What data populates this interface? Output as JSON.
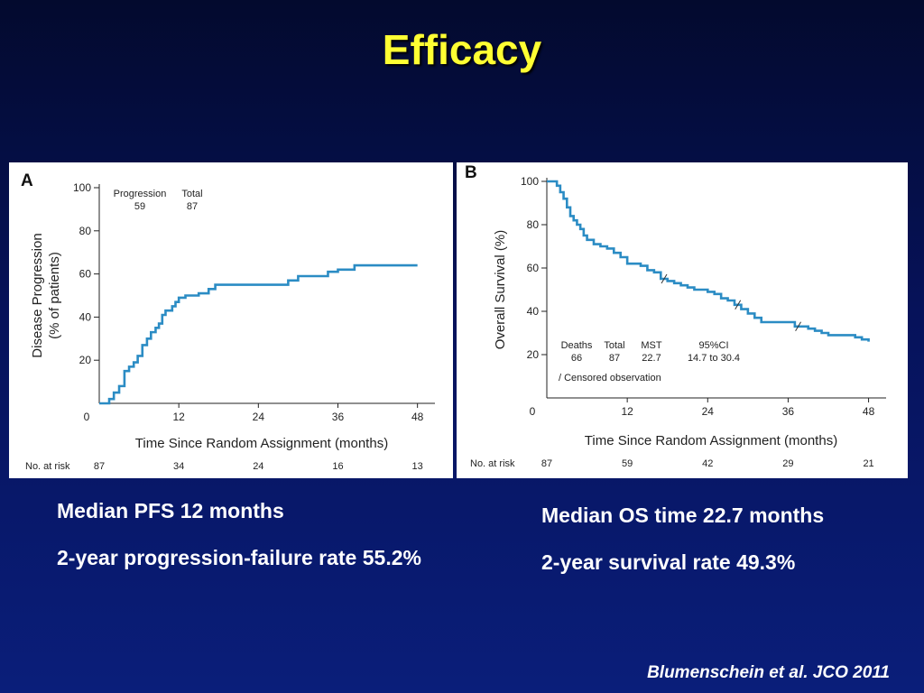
{
  "slide": {
    "title": "Efficacy",
    "citation": "Blumenschein et al. JCO 2011"
  },
  "stats": {
    "left": [
      "Median PFS 12 months",
      "2-year progression-failure rate 55.2%"
    ],
    "right": [
      "Median OS time 22.7 months",
      "2-year survival rate 49.3%"
    ]
  },
  "colors": {
    "curve": "#2b8cc4",
    "axis": "#222222",
    "title": "#ffff33"
  },
  "chart_data": [
    {
      "panel_label": "A",
      "type": "line",
      "step": true,
      "xlabel": "Time Since Random Assignment (months)",
      "ylabel": [
        "Disease Progression",
        "(% of patients)"
      ],
      "xticks": [
        0,
        12,
        24,
        36,
        48
      ],
      "yticks": [
        20,
        40,
        60,
        80,
        100
      ],
      "xlim": [
        0,
        49
      ],
      "ylim": [
        0,
        100
      ],
      "legend": {
        "headers": [
          "Progression",
          "Total"
        ],
        "values": [
          "59",
          "87"
        ]
      },
      "risk_label": "No. at risk",
      "risk": [
        "87",
        "34",
        "24",
        "16",
        "13"
      ],
      "series": [
        {
          "x": [
            0,
            1.5,
            2.2,
            3.0,
            3.8,
            4.5,
            5.2,
            5.8,
            6.5,
            7.2,
            7.8,
            8.5,
            9.0,
            9.5,
            10.0,
            11.0,
            11.5,
            12.0,
            13.0,
            15.0,
            16.5,
            17.5,
            18.0,
            20.0,
            24.0,
            27.0,
            28.5,
            30.0,
            34.5,
            36.0,
            38.5,
            44.0,
            48.0
          ],
          "y": [
            0,
            2,
            5,
            8,
            15,
            17,
            19,
            22,
            27,
            30,
            33,
            35,
            37,
            41,
            43,
            45,
            47,
            49,
            50,
            51,
            53,
            55,
            55,
            55,
            55,
            55,
            57,
            59,
            61,
            62,
            64,
            64,
            64
          ]
        }
      ]
    },
    {
      "panel_label": "B",
      "type": "line",
      "step": true,
      "xlabel": "Time Since Random Assignment (months)",
      "ylabel": [
        "Overall Survival (%)"
      ],
      "xticks": [
        0,
        12,
        24,
        36,
        48
      ],
      "yticks": [
        20,
        40,
        60,
        80,
        100
      ],
      "xlim": [
        0,
        49
      ],
      "ylim": [
        0,
        100
      ],
      "legend": {
        "headers": [
          "Deaths",
          "Total",
          "MST",
          "95%CI"
        ],
        "values": [
          "66",
          "87",
          "22.7",
          "14.7 to 30.4"
        ],
        "note": "/ Censored observation"
      },
      "censor_marks": [
        17.5,
        28.5,
        37.5
      ],
      "risk_label": "No. at risk",
      "risk": [
        "87",
        "59",
        "42",
        "29",
        "21"
      ],
      "series": [
        {
          "x": [
            0,
            1.5,
            2.0,
            2.5,
            3.0,
            3.5,
            4.0,
            4.5,
            5.0,
            5.5,
            6.0,
            7.0,
            8.0,
            9.0,
            10.0,
            11.0,
            12.0,
            14.0,
            15.0,
            16.0,
            17.0,
            18.0,
            19.0,
            20.0,
            21.0,
            22.0,
            23.0,
            24.0,
            25.0,
            26.0,
            27.0,
            28.0,
            29.0,
            30.0,
            31.0,
            32.0,
            36.0,
            37.0,
            39.0,
            40.0,
            41.0,
            42.0,
            46.0,
            47.0,
            48.0
          ],
          "y": [
            100,
            98,
            95,
            92,
            88,
            84,
            82,
            80,
            78,
            75,
            73,
            71,
            70,
            69,
            67,
            65,
            62,
            61,
            59,
            58,
            55,
            54,
            53,
            52,
            51,
            50,
            50,
            49,
            48,
            46,
            45,
            43,
            41,
            39,
            37,
            35,
            35,
            33,
            32,
            31,
            30,
            29,
            28,
            27,
            26
          ]
        }
      ]
    }
  ]
}
